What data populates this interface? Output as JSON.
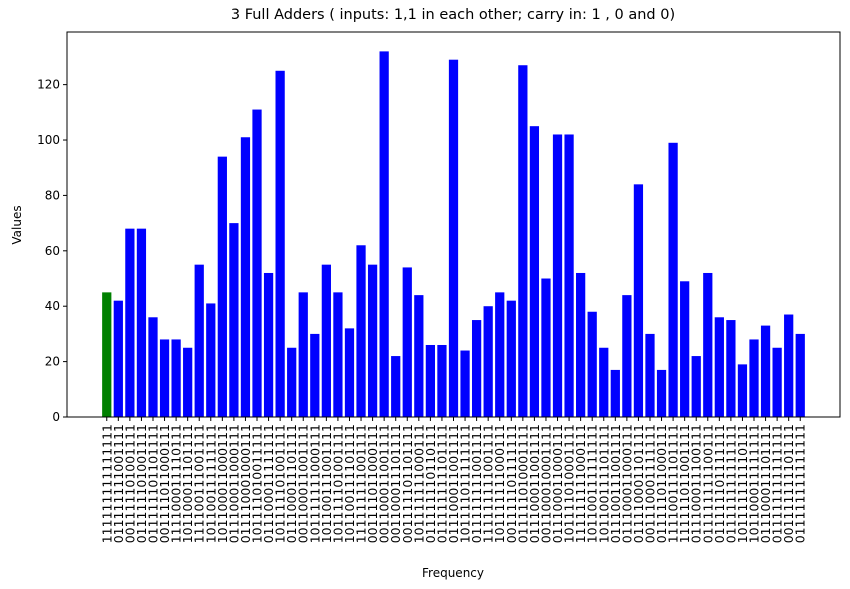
{
  "chart_data": {
    "type": "bar",
    "title": "3 Full Adders ( inputs: 1,1 in each other; carry in: 1 , 0  and 0)",
    "x_label": "Frequency",
    "y_label": "Values",
    "categories": [
      "111111111111111",
      "011111111001111",
      "001111101001111",
      "011111101001111",
      "011111101101111",
      "001111011000111",
      "111100011110111",
      "101100011101111",
      "111100111001111",
      "101100111111111",
      "101100011000111",
      "011100011000111",
      "011110001000111",
      "101111010011111",
      "011100011111111",
      "101111101001111",
      "011100011101111",
      "001100011001111",
      "101111111000111",
      "101100111001111",
      "101111101001111",
      "101100111101111",
      "111111111001111",
      "001111011000111",
      "001100011001111",
      "001100011101111",
      "001111101101111",
      "101111111000111",
      "011111110110111",
      "011111111101111",
      "011100011001111",
      "101111011111111",
      "011111111001111",
      "111111111001111",
      "101111111000111",
      "001111101111111",
      "011111010001111",
      "011100011001111",
      "001100010001111",
      "011100011000111",
      "101111010001111",
      "111111111000111",
      "101100111111111",
      "101100111101111",
      "011100111001111",
      "011100011000111",
      "011110001101111",
      "001110001111111",
      "011111011000111",
      "111100111101111",
      "111111011001111",
      "011100011100111",
      "011111111100111",
      "011111101111111",
      "011111111111111",
      "101111111110111",
      "101100011111111",
      "011100011101111",
      "011111111111111",
      "001111111101111",
      "011111111111111"
    ],
    "values": [
      45,
      42,
      68,
      68,
      36,
      28,
      28,
      25,
      55,
      41,
      94,
      70,
      101,
      111,
      52,
      125,
      25,
      45,
      30,
      55,
      45,
      32,
      62,
      55,
      132,
      22,
      54,
      44,
      26,
      26,
      129,
      24,
      35,
      40,
      45,
      42,
      127,
      105,
      50,
      102,
      102,
      52,
      38,
      25,
      17,
      44,
      84,
      30,
      17,
      99,
      49,
      22,
      52,
      36,
      35,
      19,
      28,
      33,
      25,
      37,
      30
    ],
    "colors": [
      "#008000",
      "#0000ff",
      "#0000ff",
      "#0000ff",
      "#0000ff",
      "#0000ff",
      "#0000ff",
      "#0000ff",
      "#0000ff",
      "#0000ff",
      "#0000ff",
      "#0000ff",
      "#0000ff",
      "#0000ff",
      "#0000ff",
      "#0000ff",
      "#0000ff",
      "#0000ff",
      "#0000ff",
      "#0000ff",
      "#0000ff",
      "#0000ff",
      "#0000ff",
      "#0000ff",
      "#0000ff",
      "#0000ff",
      "#0000ff",
      "#0000ff",
      "#0000ff",
      "#0000ff",
      "#0000ff",
      "#0000ff",
      "#0000ff",
      "#0000ff",
      "#0000ff",
      "#0000ff",
      "#0000ff",
      "#0000ff",
      "#0000ff",
      "#0000ff",
      "#0000ff",
      "#0000ff",
      "#0000ff",
      "#0000ff",
      "#0000ff",
      "#0000ff",
      "#0000ff",
      "#0000ff",
      "#0000ff",
      "#0000ff",
      "#0000ff",
      "#0000ff",
      "#0000ff",
      "#0000ff",
      "#0000ff",
      "#0000ff",
      "#0000ff",
      "#0000ff",
      "#0000ff",
      "#0000ff",
      "#0000ff"
    ],
    "ylim": [
      0,
      139
    ],
    "yticks": [
      0,
      20,
      40,
      60,
      80,
      100,
      120
    ],
    "grid": false
  }
}
